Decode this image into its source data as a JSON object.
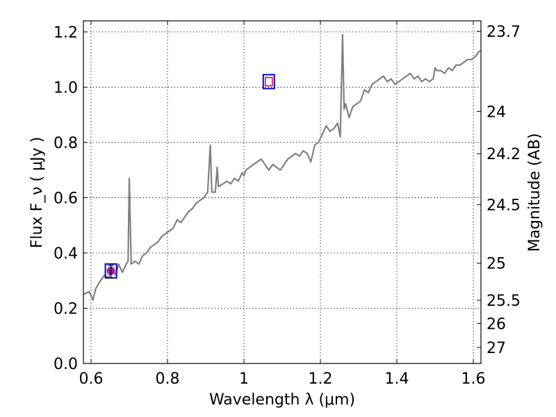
{
  "chart_data": {
    "type": "line",
    "xlabel": "Wavelength  λ (μm)",
    "ylabel": "Flux  F_ν  ( μJy )",
    "y2label": "Magnitude (AB)",
    "xlim": [
      0.58,
      1.62
    ],
    "ylim": [
      0.0,
      1.24
    ],
    "grid": true,
    "x_ticks": [
      0.6,
      0.8,
      1.0,
      1.2,
      1.4,
      1.6
    ],
    "x_tick_labels": [
      "0.6",
      "0.8",
      "1",
      "1.2",
      "1.4",
      "1.6"
    ],
    "y_ticks": [
      0.0,
      0.2,
      0.4,
      0.6,
      0.8,
      1.0,
      1.2
    ],
    "y_tick_labels": [
      "0.0",
      "0.2",
      "0.4",
      "0.6",
      "0.8",
      "1.0",
      "1.2"
    ],
    "mag_ticks": [
      {
        "label": "23.7",
        "flux": 1.202
      },
      {
        "label": "24",
        "flux": 0.912
      },
      {
        "label": "24.2",
        "flux": 0.759
      },
      {
        "label": "24.5",
        "flux": 0.575
      },
      {
        "label": "25",
        "flux": 0.363
      },
      {
        "label": "25.5",
        "flux": 0.229
      },
      {
        "label": "26",
        "flux": 0.145
      },
      {
        "label": "27",
        "flux": 0.058
      }
    ],
    "series": [
      {
        "color": "#808080",
        "x": [
          0.58,
          0.595,
          0.605,
          0.612,
          0.62,
          0.635,
          0.645,
          0.655,
          0.665,
          0.672,
          0.682,
          0.692,
          0.697,
          0.7,
          0.705,
          0.715,
          0.725,
          0.735,
          0.745,
          0.755,
          0.765,
          0.775,
          0.785,
          0.795,
          0.805,
          0.815,
          0.825,
          0.835,
          0.845,
          0.855,
          0.865,
          0.875,
          0.885,
          0.895,
          0.905,
          0.912,
          0.916,
          0.925,
          0.93,
          0.933,
          0.945,
          0.955,
          0.965,
          0.975,
          0.985,
          0.995,
          1.0,
          1.005,
          1.015,
          1.025,
          1.035,
          1.045,
          1.055,
          1.065,
          1.075,
          1.085,
          1.095,
          1.105,
          1.115,
          1.125,
          1.135,
          1.145,
          1.155,
          1.165,
          1.175,
          1.185,
          1.195,
          1.205,
          1.215,
          1.225,
          1.235,
          1.245,
          1.252,
          1.258,
          1.262,
          1.266,
          1.275,
          1.285,
          1.295,
          1.305,
          1.315,
          1.325,
          1.335,
          1.345,
          1.355,
          1.365,
          1.375,
          1.385,
          1.395,
          1.405,
          1.415,
          1.425,
          1.435,
          1.445,
          1.455,
          1.465,
          1.475,
          1.485,
          1.495,
          1.5,
          1.505,
          1.515,
          1.525,
          1.535,
          1.545,
          1.555,
          1.565,
          1.575,
          1.585,
          1.595,
          1.605,
          1.615,
          1.62
        ],
        "y": [
          0.25,
          0.26,
          0.23,
          0.27,
          0.29,
          0.32,
          0.31,
          0.34,
          0.32,
          0.36,
          0.33,
          0.36,
          0.37,
          0.67,
          0.36,
          0.37,
          0.36,
          0.39,
          0.4,
          0.42,
          0.43,
          0.44,
          0.46,
          0.47,
          0.48,
          0.49,
          0.52,
          0.51,
          0.53,
          0.55,
          0.56,
          0.58,
          0.59,
          0.6,
          0.62,
          0.79,
          0.62,
          0.62,
          0.71,
          0.64,
          0.65,
          0.66,
          0.65,
          0.67,
          0.66,
          0.69,
          0.68,
          0.7,
          0.71,
          0.72,
          0.73,
          0.74,
          0.72,
          0.7,
          0.72,
          0.71,
          0.7,
          0.72,
          0.74,
          0.75,
          0.76,
          0.75,
          0.77,
          0.76,
          0.73,
          0.79,
          0.8,
          0.83,
          0.86,
          0.84,
          0.85,
          0.87,
          0.82,
          1.19,
          0.92,
          0.94,
          0.89,
          0.93,
          0.94,
          0.95,
          0.99,
          0.98,
          1.01,
          1.02,
          1.03,
          1.04,
          1.02,
          1.03,
          1.01,
          1.02,
          1.03,
          1.04,
          1.05,
          1.03,
          1.04,
          1.02,
          1.03,
          1.02,
          1.03,
          1.07,
          1.06,
          1.06,
          1.05,
          1.07,
          1.06,
          1.08,
          1.08,
          1.09,
          1.1,
          1.1,
          1.11,
          1.13,
          1.13
        ]
      }
    ],
    "photometry_markers": [
      {
        "x": 0.652,
        "y": 0.335,
        "box_color": "#0000cc",
        "fill_color": "#9b1fa8",
        "errorbar": [
          0.31,
          0.355
        ]
      },
      {
        "x": 1.065,
        "y": 1.02,
        "box_color": "#0000cc",
        "fill_color": "none",
        "inner_color": "#e0003c"
      }
    ]
  }
}
